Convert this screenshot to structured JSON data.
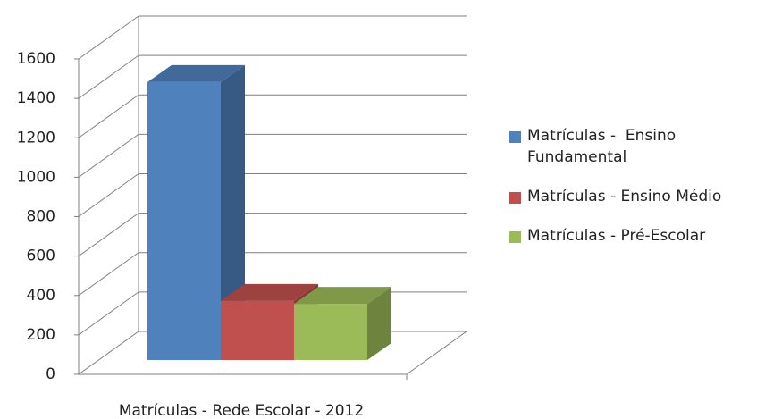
{
  "chart_data": {
    "type": "bar3d",
    "categories": [
      "Matrículas - Rede Escolar - 2012"
    ],
    "series": [
      {
        "name": "Matrículas -  Ensino Fundamental",
        "color": "#4f81bd",
        "values": [
          1410
        ]
      },
      {
        "name": "Matrículas - Ensino Médio",
        "color": "#c0504d",
        "values": [
          300
        ]
      },
      {
        "name": "Matrículas - Pré-Escolar",
        "color": "#9bbb59",
        "values": [
          285
        ]
      }
    ],
    "ylim": [
      0,
      1600
    ],
    "yticks": [
      0,
      200,
      400,
      600,
      800,
      1000,
      1200,
      1400,
      1600
    ],
    "grid": true,
    "legend": "right"
  }
}
